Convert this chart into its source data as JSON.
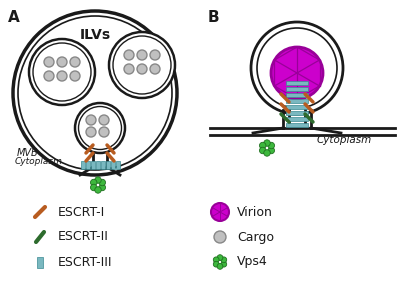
{
  "bg_color": "#ffffff",
  "outline_color": "#1a1a1a",
  "escrt1_color": "#b85c20",
  "escrt2_color": "#2d6b2d",
  "escrt3_color": "#7ab8c0",
  "virion_color": "#cc00cc",
  "virion_edge": "#990099",
  "cargo_fill": "#c0c0c0",
  "cargo_edge": "#888888",
  "vps4_color": "#3db83d",
  "vps4_edge": "#207020",
  "label_A": "A",
  "label_B": "B",
  "text_ILVs": "ILVs",
  "text_MVB": "MVB",
  "text_Cytoplasm_A": "Cytoplasm",
  "text_Cytoplasm_B": "Cytoplasm",
  "legend_items": [
    "ESCRT-I",
    "ESCRT-II",
    "ESCRT-III",
    "Virion",
    "Cargo",
    "Vps4"
  ]
}
